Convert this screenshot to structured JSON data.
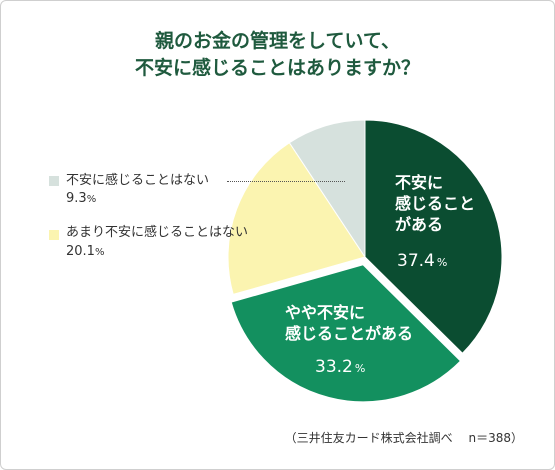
{
  "title": {
    "line1": "親のお金の管理をしていて、",
    "line2": "不安に感じることはありますか？"
  },
  "chart_data": {
    "type": "pie",
    "start": "12 o'clock, clockwise",
    "slices": [
      {
        "label": "不安に感じることがある",
        "label_lines": [
          "不安に",
          "感じること",
          "がある"
        ],
        "value": 37.4,
        "value_text": "37.4",
        "unit": "%",
        "color": "#0b4d31"
      },
      {
        "label": "やや不安に感じることがある",
        "label_lines": [
          "やや不安に",
          "感じることがある"
        ],
        "value": 33.2,
        "value_text": "33.2",
        "unit": "%",
        "color": "#13905f"
      },
      {
        "label": "あまり不安に感じることはない",
        "label_lines": [
          "あまり不安に感じることはない"
        ],
        "value": 20.1,
        "value_text": "20.1",
        "unit": "%",
        "color": "#fbf4b0"
      },
      {
        "label": "不安に感じることはない",
        "label_lines": [
          "不安に感じることはない"
        ],
        "value": 9.3,
        "value_text": "9.3",
        "unit": "%",
        "color": "#d6e1dd"
      }
    ]
  },
  "legend": [
    {
      "label": "不安に感じることはない",
      "value": "9.3",
      "unit": "%",
      "color": "#d6e1dd"
    },
    {
      "label": "あまり不安に感じることはない",
      "value": "20.1",
      "unit": "%",
      "color": "#fbf4b0"
    }
  ],
  "source": "（三井住友カード株式会社調べ　 n＝388）"
}
